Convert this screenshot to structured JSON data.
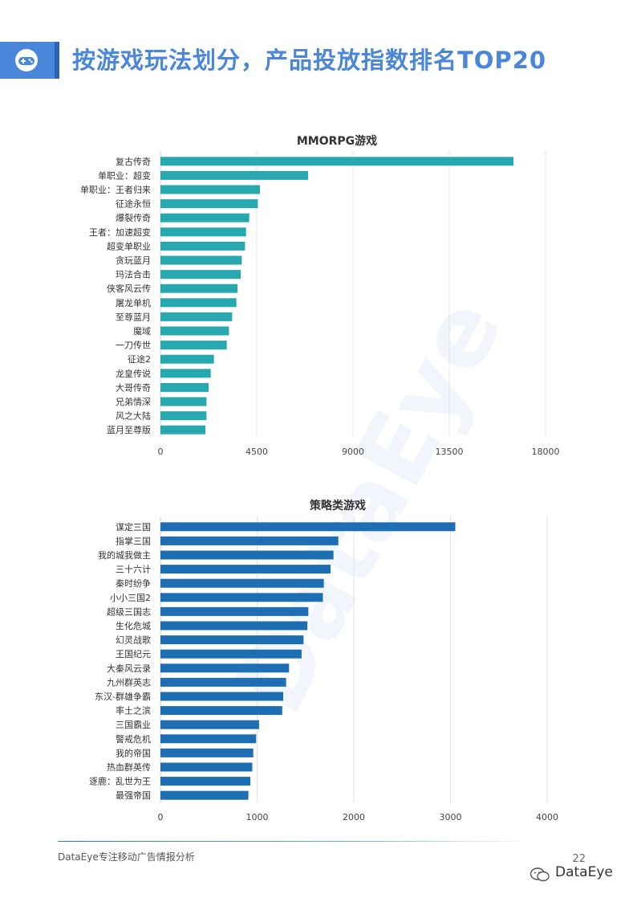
{
  "header": {
    "title": "按游戏玩法划分，产品投放指数排名TOP20"
  },
  "chart_data": [
    {
      "type": "bar",
      "orientation": "horizontal",
      "title": "MMORPG游戏",
      "color": "#27a7ae",
      "categories": [
        "复古传奇",
        "单职业：超变",
        "单职业：王者归来",
        "征途永恒",
        "爆裂传奇",
        "王者：加速超变",
        "超变单职业",
        "贪玩蓝月",
        "玛法合击",
        "侠客风云传",
        "屠龙单机",
        "至尊蓝月",
        "魔域",
        "一刀传世",
        "征途2",
        "龙皇传说",
        "大哥传奇",
        "兄弟情深",
        "风之大陆",
        "蓝月至尊版"
      ],
      "values": [
        16500,
        6900,
        4650,
        4550,
        4150,
        4000,
        3950,
        3800,
        3750,
        3600,
        3550,
        3350,
        3200,
        3100,
        2500,
        2350,
        2250,
        2150,
        2150,
        2100
      ],
      "xlim": [
        0,
        18000
      ],
      "xticks": [
        "0",
        "4500",
        "9000",
        "13500",
        "18000"
      ],
      "grid": true
    },
    {
      "type": "bar",
      "orientation": "horizontal",
      "title": "策略类游戏",
      "color": "#1d6eb3",
      "categories": [
        "谋定三国",
        "指掌三国",
        "我的城我做主",
        "三十六计",
        "秦时纷争",
        "小小三国2",
        "超级三国志",
        "生化危城",
        "幻灵战歌",
        "王国纪元",
        "大秦风云录",
        "九州群英志",
        "东汉-群雄争霸",
        "率土之滨",
        "三国霸业",
        "警戒危机",
        "我的帝国",
        "热血群英传",
        "逐鹿：乱世为王",
        "最强帝国"
      ],
      "values": [
        3050,
        1840,
        1790,
        1760,
        1690,
        1680,
        1530,
        1520,
        1480,
        1460,
        1330,
        1300,
        1270,
        1260,
        1020,
        990,
        960,
        950,
        930,
        910
      ],
      "xlim": [
        0,
        4000
      ],
      "xticks": [
        "0",
        "1000",
        "2000",
        "3000",
        "4000"
      ],
      "grid": true
    }
  ],
  "watermark": "DataEye",
  "footer": {
    "text": "DataEye专注移动广告情报分析",
    "page_number": "22",
    "brand": "DataEye"
  }
}
